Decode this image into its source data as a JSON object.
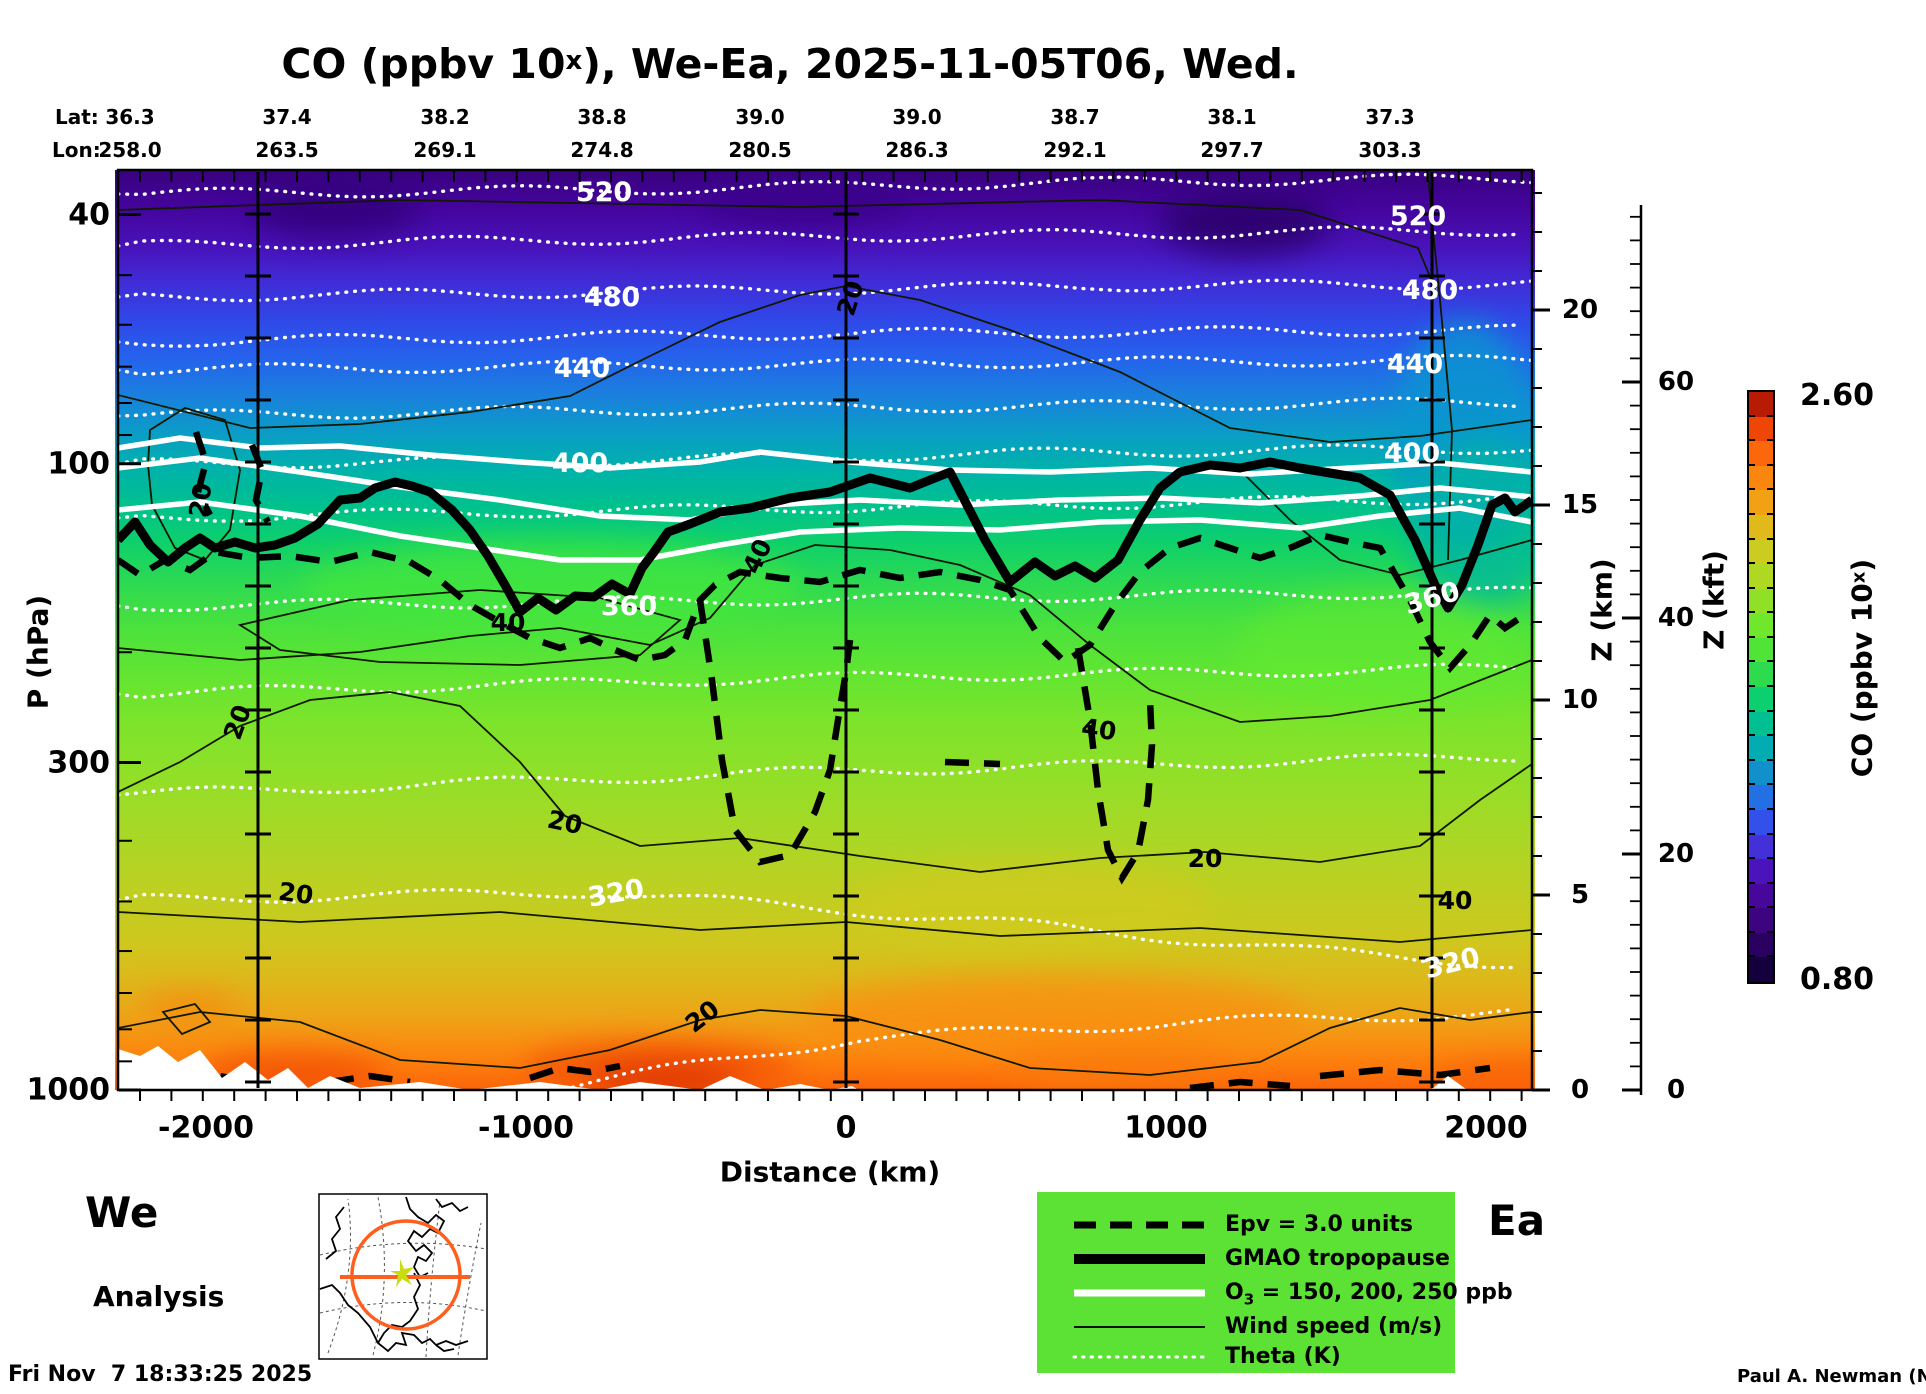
{
  "title": {
    "prefix": "CO (ppbv 10",
    "sup": "x",
    "suffix": "), We-Ea, 2025-11-05T06, Wed."
  },
  "top_axis": {
    "lat_label": "Lat:",
    "lon_label": "Lon:",
    "lat": [
      "36.3",
      "37.4",
      "38.2",
      "38.8",
      "39.0",
      "39.0",
      "38.7",
      "38.1",
      "37.3"
    ],
    "lon": [
      "258.0",
      "263.5",
      "269.1",
      "274.8",
      "280.5",
      "286.3",
      "292.1",
      "297.7",
      "303.3"
    ]
  },
  "y_left": {
    "label": "P (hPa)",
    "ticks": [
      "40",
      "100",
      "300",
      "1000"
    ]
  },
  "y_right_km": {
    "label": "Z (km)",
    "ticks": [
      "20",
      "15",
      "10",
      "5",
      "0"
    ]
  },
  "y_right_kft": {
    "label": "Z (kft)",
    "ticks": [
      "60",
      "40",
      "20",
      "0"
    ]
  },
  "x_axis": {
    "label": "Distance (km)",
    "ticks": [
      "-2000",
      "-1000",
      "0",
      "1000",
      "2000"
    ]
  },
  "contours": {
    "theta_labels": [
      "520",
      "480",
      "440",
      "400",
      "360",
      "320"
    ],
    "wind_labels": [
      "20",
      "40"
    ]
  },
  "legend": {
    "items": [
      {
        "label": "Epv = 3.0 units"
      },
      {
        "label": "GMAO tropopause"
      },
      {
        "o3_pre": "O",
        "o3_sub": "3",
        "o3_post": " = 150, 200, 250 ppb"
      },
      {
        "label": "Wind speed (m/s)"
      },
      {
        "label": "Theta (K)"
      }
    ],
    "bg_color": "#5ce234"
  },
  "colorbar": {
    "max": "2.60",
    "min": "0.80",
    "label_prefix": "CO (ppbv 10",
    "label_sup": "x",
    "label_suffix": ")",
    "colors": [
      "#14003c",
      "#2a0060",
      "#3c047f",
      "#47079b",
      "#4b13bb",
      "#4430d8",
      "#3350ea",
      "#2370e4",
      "#1190cc",
      "#02acb2",
      "#00c092",
      "#0ccf6f",
      "#2edb4f",
      "#50e338",
      "#70e62d",
      "#8fe027",
      "#afd823",
      "#cccb1f",
      "#e2b91b",
      "#f2a115",
      "#fb860f",
      "#fb670a",
      "#ef4605",
      "#b81b03"
    ]
  },
  "corner": {
    "we": "We",
    "ea": "Ea",
    "analysis": "Analysis",
    "timestamp": "Fri Nov  7 18:33:25 2025",
    "credit": "Paul A. Newman (NASA"
  },
  "chart_data": {
    "type": "heatmap",
    "title": "CO (ppbv 10^x), We-Ea, 2025-11-05T06, Wed.",
    "description": "Vertical atmospheric cross-section (curtain plot) of carbon monoxide along a West-East great-circle path, filled color field of log10 CO with overlaid contours",
    "x": {
      "label": "Distance (km)",
      "range": [
        -2300,
        2150
      ],
      "ticks": [
        -2000,
        -1000,
        0,
        1000,
        2000
      ],
      "waypoint_lines_km": [
        -1840,
        0,
        1835
      ]
    },
    "y_pressure": {
      "label": "P (hPa)",
      "scale": "log",
      "ticks": [
        40,
        100,
        300,
        1000
      ],
      "range": [
        34,
        1000
      ]
    },
    "y_altitude_km": {
      "label": "Z (km)",
      "ticks": [
        0,
        5,
        10,
        15,
        20
      ]
    },
    "y_altitude_kft": {
      "label": "Z (kft)",
      "ticks": [
        0,
        20,
        40,
        60
      ]
    },
    "top_axis": {
      "lat": [
        36.3,
        37.4,
        38.2,
        38.8,
        39.0,
        39.0,
        38.7,
        38.1,
        37.3
      ],
      "lon": [
        258.0,
        263.5,
        269.1,
        274.8,
        280.5,
        286.3,
        292.1,
        297.7,
        303.3
      ]
    },
    "colorbar": {
      "label": "CO (ppbv 10^x)",
      "min": 0.8,
      "max": 2.6,
      "n_steps": 24,
      "palette": "dark-purple to blue to green to yellow to orange to dark-red"
    },
    "overlays": [
      {
        "name": "Theta (K)",
        "style": "white dotted",
        "labeled_levels": [
          320,
          360,
          400,
          440,
          480,
          520
        ]
      },
      {
        "name": "Wind speed (m/s)",
        "style": "thin black solid",
        "labeled_levels": [
          20,
          40
        ]
      },
      {
        "name": "O3",
        "style": "thick white solid",
        "levels_ppb": [
          150,
          200,
          250
        ]
      },
      {
        "name": "GMAO tropopause",
        "style": "very thick black solid",
        "approx_pressure_hPa": "120-250, dips near x=-1150, x=600, x=1850 km"
      },
      {
        "name": "Epv = 3.0 units",
        "style": "thick black dashed"
      }
    ],
    "annotations": [
      "We (west end)",
      "Ea (east end)",
      "Analysis",
      "Fri Nov  7 18:33:25 2025",
      "Paul A. Newman (NASA"
    ]
  }
}
